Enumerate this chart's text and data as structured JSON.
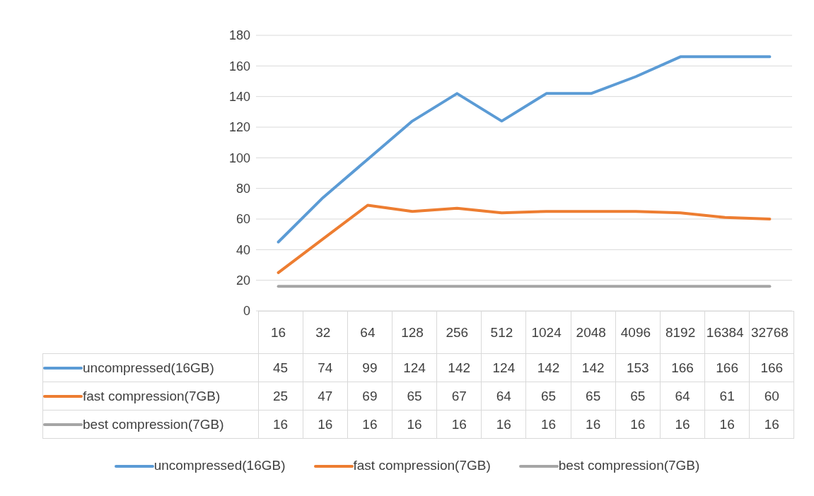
{
  "chart_data": {
    "type": "line",
    "categories": [
      "16",
      "32",
      "64",
      "128",
      "256",
      "512",
      "1024",
      "2048",
      "4096",
      "8192",
      "16384",
      "32768"
    ],
    "series": [
      {
        "name": "uncompressed(16GB)",
        "color": "#5b9bd5",
        "values": [
          45,
          74,
          99,
          124,
          142,
          124,
          142,
          142,
          153,
          166,
          166,
          166
        ]
      },
      {
        "name": "fast compression(7GB)",
        "color": "#ed7d31",
        "values": [
          25,
          47,
          69,
          65,
          67,
          64,
          65,
          65,
          65,
          64,
          61,
          60
        ]
      },
      {
        "name": "best compression(7GB)",
        "color": "#a5a5a5",
        "values": [
          16,
          16,
          16,
          16,
          16,
          16,
          16,
          16,
          16,
          16,
          16,
          16
        ]
      }
    ],
    "ylim": [
      0,
      180
    ],
    "yticks": [
      0,
      20,
      40,
      60,
      80,
      100,
      120,
      140,
      160,
      180
    ],
    "grid": "y",
    "legend": "bottom",
    "data_labels": true
  }
}
